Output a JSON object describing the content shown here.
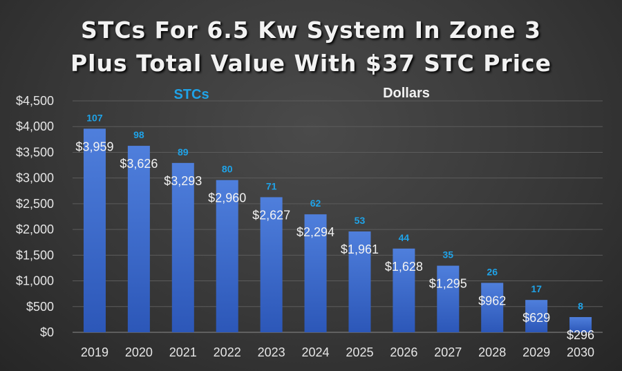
{
  "chart_data": {
    "type": "bar",
    "title_line1": "STCs For 6.5 Kw System In Zone 3",
    "title_line2": "Plus Total Value With $37 STC Price",
    "legend": {
      "stcs": "STCs",
      "dollars": "Dollars",
      "placement": "top-center"
    },
    "categories": [
      "2019",
      "2020",
      "2021",
      "2022",
      "2023",
      "2024",
      "2025",
      "2026",
      "2027",
      "2028",
      "2029",
      "2030"
    ],
    "series": [
      {
        "name": "Dollars",
        "values": [
          3959,
          3626,
          3293,
          2960,
          2627,
          2294,
          1961,
          1628,
          1295,
          962,
          629,
          296
        ],
        "labels": [
          "$3,959",
          "$3,626",
          "$3,293",
          "$2,960",
          "$2,627",
          "$2,294",
          "$1,961",
          "$1,628",
          "$1,295",
          "$962",
          "$629",
          "$296"
        ]
      },
      {
        "name": "STCs",
        "values": [
          107,
          98,
          89,
          80,
          71,
          62,
          53,
          44,
          35,
          26,
          17,
          8
        ]
      }
    ],
    "yticks": [
      "$0",
      "$500",
      "$1,000",
      "$1,500",
      "$2,000",
      "$2,500",
      "$3,000",
      "$3,500",
      "$4,000",
      "$4,500"
    ],
    "ylim": [
      0,
      4500
    ],
    "ystep": 500,
    "grid": true,
    "colors": {
      "bar_top": "#4a78d6",
      "bar_bottom": "#2f5bbd",
      "stc_label": "#1fa3e8"
    }
  }
}
